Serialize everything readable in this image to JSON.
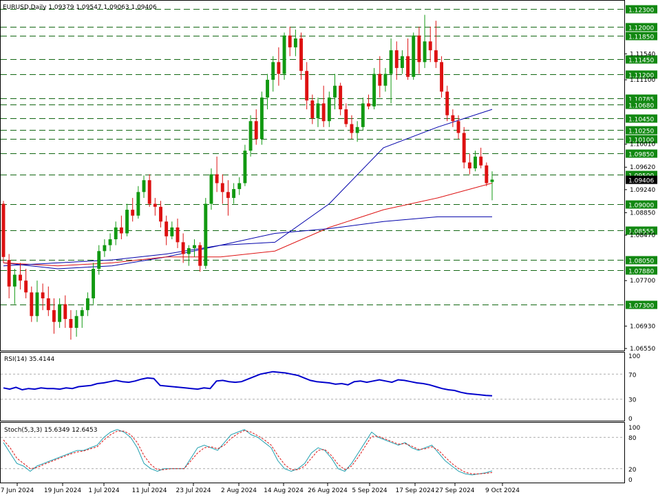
{
  "main": {
    "header": "EURUSD,Daily  1.09379 1.09547 1.09063 1.09406",
    "current_price": "1.09406",
    "price_ticks": [
      "1.11540",
      "1.11100",
      "1.10010",
      "1.09620",
      "1.09240",
      "1.08850",
      "1.08470",
      "1.07700",
      "1.06930",
      "1.06550"
    ],
    "levels": [
      "1.12300",
      "1.12000",
      "1.11850",
      "1.11450",
      "1.11200",
      "1.10785",
      "1.10680",
      "1.10450",
      "1.10250",
      "1.10100",
      "1.09850",
      "1.09500",
      "1.09000",
      "1.08555",
      "1.08050",
      "1.07880",
      "1.07300"
    ],
    "colors": {
      "up": "#119911",
      "down": "#dd1111",
      "level_bg": "#118811",
      "ma_red": "#dd1111",
      "ma_blue": "#0000aa",
      "current_bg": "#000000"
    }
  },
  "rsi": {
    "header": "RSI(14) 35.4144",
    "ticks": [
      "100",
      "70",
      "30",
      "0"
    ],
    "color": "#0000cc"
  },
  "stoch": {
    "header": "Stoch(5,3,3) 15.6349 12.6453",
    "ticks": [
      "100",
      "80",
      "20",
      "0"
    ],
    "main_color": "#20a0b0",
    "signal_color": "#dd1111"
  },
  "x_axis": {
    "labels": [
      "7 Jun 2024",
      "19 Jun 2024",
      "1 Jul 2024",
      "11 Jul 2024",
      "23 Jul 2024",
      "2 Aug 2024",
      "14 Aug 2024",
      "26 Aug 2024",
      "5 Sep 2024",
      "17 Sep 2024",
      "27 Sep 2024",
      "9 Oct 2024"
    ]
  },
  "chart_data": [
    {
      "type": "candlestick",
      "symbol": "EURUSD",
      "timeframe": "Daily",
      "ohlc": [
        [
          1.09,
          1.0905,
          1.08,
          1.081
        ],
        [
          1.0805,
          1.0815,
          1.074,
          1.076
        ],
        [
          1.076,
          1.079,
          1.073,
          1.078
        ],
        [
          1.078,
          1.08,
          1.0755,
          1.077
        ],
        [
          1.077,
          1.079,
          1.074,
          1.075
        ],
        [
          1.075,
          1.076,
          1.07,
          1.071
        ],
        [
          1.071,
          1.077,
          1.07,
          1.075
        ],
        [
          1.075,
          1.0765,
          1.072,
          1.074
        ],
        [
          1.074,
          1.076,
          1.071,
          1.072
        ],
        [
          1.072,
          1.074,
          1.068,
          1.07
        ],
        [
          1.07,
          1.074,
          1.069,
          1.073
        ],
        [
          1.073,
          1.0745,
          1.069,
          1.0705
        ],
        [
          1.0705,
          1.072,
          1.067,
          1.069
        ],
        [
          1.069,
          1.072,
          1.0675,
          1.071
        ],
        [
          1.071,
          1.0725,
          1.069,
          1.072
        ],
        [
          1.072,
          1.075,
          1.071,
          1.074
        ],
        [
          1.074,
          1.08,
          1.073,
          1.079
        ],
        [
          1.079,
          1.083,
          1.078,
          1.082
        ],
        [
          1.082,
          1.084,
          1.081,
          1.083
        ],
        [
          1.083,
          1.085,
          1.082,
          1.084
        ],
        [
          1.084,
          1.087,
          1.083,
          1.086
        ],
        [
          1.086,
          1.088,
          1.084,
          1.085
        ],
        [
          1.085,
          1.09,
          1.0845,
          1.089
        ],
        [
          1.089,
          1.091,
          1.087,
          1.088
        ],
        [
          1.088,
          1.093,
          1.0875,
          1.092
        ],
        [
          1.092,
          1.0948,
          1.091,
          1.094
        ],
        [
          1.094,
          1.095,
          1.0895,
          1.09
        ],
        [
          1.09,
          1.091,
          1.088,
          1.0895
        ],
        [
          1.0895,
          1.0905,
          1.086,
          1.087
        ],
        [
          1.087,
          1.088,
          1.083,
          1.0845
        ],
        [
          1.0845,
          1.087,
          1.084,
          1.086
        ],
        [
          1.086,
          1.0875,
          1.0825,
          1.0835
        ],
        [
          1.0835,
          1.085,
          1.08,
          1.0815
        ],
        [
          1.0815,
          1.083,
          1.0795,
          1.0825
        ],
        [
          1.0825,
          1.084,
          1.081,
          1.083
        ],
        [
          1.083,
          1.0835,
          1.0785,
          1.0795
        ],
        [
          1.0795,
          1.091,
          1.079,
          1.09
        ],
        [
          1.09,
          1.096,
          1.089,
          1.095
        ],
        [
          1.095,
          1.098,
          1.092,
          1.0935
        ],
        [
          1.0935,
          1.095,
          1.09,
          1.092
        ],
        [
          1.092,
          1.094,
          1.088,
          1.091
        ],
        [
          1.091,
          1.0935,
          1.09,
          1.0925
        ],
        [
          1.0925,
          1.0945,
          1.0915,
          1.0935
        ],
        [
          1.0935,
          1.1,
          1.093,
          1.099
        ],
        [
          1.099,
          1.105,
          1.098,
          1.104
        ],
        [
          1.104,
          1.106,
          1.1,
          1.101
        ],
        [
          1.101,
          1.109,
          1.1,
          1.108
        ],
        [
          1.108,
          1.112,
          1.106,
          1.111
        ],
        [
          1.111,
          1.115,
          1.109,
          1.114
        ],
        [
          1.114,
          1.1165,
          1.11,
          1.112
        ],
        [
          1.112,
          1.119,
          1.111,
          1.1185
        ],
        [
          1.1185,
          1.12,
          1.115,
          1.1165
        ],
        [
          1.1165,
          1.1195,
          1.115,
          1.118
        ],
        [
          1.118,
          1.119,
          1.111,
          1.1125
        ],
        [
          1.1125,
          1.114,
          1.106,
          1.1075
        ],
        [
          1.1075,
          1.1085,
          1.1035,
          1.1045
        ],
        [
          1.1045,
          1.108,
          1.103,
          1.107
        ],
        [
          1.107,
          1.11,
          1.103,
          1.104
        ],
        [
          1.104,
          1.109,
          1.103,
          1.108
        ],
        [
          1.108,
          1.112,
          1.106,
          1.11
        ],
        [
          1.11,
          1.1105,
          1.105,
          1.106
        ],
        [
          1.106,
          1.107,
          1.103,
          1.1035
        ],
        [
          1.1035,
          1.105,
          1.101,
          1.102
        ],
        [
          1.102,
          1.104,
          1.1005,
          1.103
        ],
        [
          1.103,
          1.108,
          1.1025,
          1.107
        ],
        [
          1.107,
          1.1085,
          1.106,
          1.1065
        ],
        [
          1.1065,
          1.113,
          1.106,
          1.112
        ],
        [
          1.112,
          1.115,
          1.108,
          1.11
        ],
        [
          1.11,
          1.113,
          1.109,
          1.112
        ],
        [
          1.112,
          1.118,
          1.107,
          1.116
        ],
        [
          1.116,
          1.1175,
          1.111,
          1.113
        ],
        [
          1.113,
          1.116,
          1.112,
          1.115
        ],
        [
          1.115,
          1.118,
          1.111,
          1.1115
        ],
        [
          1.1115,
          1.119,
          1.111,
          1.1185
        ],
        [
          1.1185,
          1.12,
          1.112,
          1.114
        ],
        [
          1.114,
          1.122,
          1.113,
          1.1175
        ],
        [
          1.1175,
          1.12,
          1.114,
          1.116
        ],
        [
          1.116,
          1.121,
          1.113,
          1.114
        ],
        [
          1.114,
          1.115,
          1.108,
          1.109
        ],
        [
          1.109,
          1.11,
          1.104,
          1.105
        ],
        [
          1.105,
          1.106,
          1.103,
          1.104
        ],
        [
          1.104,
          1.105,
          1.101,
          1.102
        ],
        [
          1.102,
          1.103,
          1.096,
          1.097
        ],
        [
          1.097,
          1.0985,
          1.095,
          1.096
        ],
        [
          1.096,
          1.099,
          1.0955,
          1.098
        ],
        [
          1.098,
          1.0995,
          1.096,
          1.0965
        ],
        [
          1.0965,
          1.097,
          1.093,
          1.0935
        ],
        [
          1.0937,
          1.0955,
          1.0906,
          1.0941
        ]
      ],
      "moving_averages": [
        {
          "color": "#0000aa",
          "values": [
            1.08,
            1.079,
            1.0795,
            1.081,
            1.083,
            1.0835,
            1.09,
            1.0995,
            1.103,
            1.106
          ]
        },
        {
          "color": "#dd1111",
          "values": [
            1.08,
            1.0795,
            1.08,
            1.081,
            1.081,
            1.082,
            1.086,
            1.089,
            1.091,
            1.0935
          ]
        },
        {
          "color": "#0000aa",
          "values": [
            1.0795,
            1.08,
            1.0805,
            1.0815,
            1.083,
            1.085,
            1.0858,
            1.087,
            1.0878,
            1.0878
          ]
        }
      ],
      "levels": [
        1.123,
        1.12,
        1.1185,
        1.1145,
        1.112,
        1.10785,
        1.1068,
        1.1045,
        1.1025,
        1.101,
        1.0985,
        1.095,
        1.09,
        1.08555,
        1.0805,
        1.0788,
        1.073
      ]
    },
    {
      "type": "line",
      "name": "RSI(14)",
      "ylim": [
        0,
        100
      ],
      "values": [
        48,
        46,
        49,
        45,
        47,
        46,
        48,
        47,
        47,
        46,
        48,
        47,
        50,
        51,
        52,
        55,
        56,
        58,
        60,
        58,
        57,
        59,
        62,
        64,
        63,
        52,
        51,
        50,
        49,
        48,
        47,
        46,
        48,
        47,
        59,
        60,
        58,
        57,
        58,
        62,
        66,
        70,
        72,
        74,
        73,
        72,
        70,
        68,
        64,
        60,
        58,
        57,
        56,
        54,
        55,
        53,
        58,
        59,
        57,
        59,
        61,
        59,
        57,
        61,
        60,
        58,
        56,
        55,
        53,
        50,
        47,
        45,
        44,
        41,
        39,
        38,
        37,
        36,
        35.4
      ]
    },
    {
      "type": "line",
      "name": "Stoch(5,3,3)",
      "ylim": [
        0,
        100
      ],
      "series": [
        {
          "values": [
            70,
            50,
            30,
            25,
            15,
            25,
            30,
            35,
            40,
            45,
            50,
            55,
            55,
            60,
            65,
            80,
            90,
            95,
            90,
            80,
            60,
            30,
            20,
            15,
            20,
            20,
            20,
            20,
            40,
            60,
            65,
            60,
            55,
            70,
            85,
            90,
            95,
            85,
            80,
            70,
            60,
            35,
            20,
            15,
            20,
            30,
            50,
            60,
            55,
            40,
            20,
            15,
            30,
            50,
            70,
            90,
            80,
            75,
            70,
            65,
            70,
            60,
            55,
            60,
            65,
            50,
            35,
            25,
            15,
            10,
            8,
            10,
            12,
            15.6
          ]
        },
        {
          "values": [
            75,
            60,
            40,
            30,
            20,
            22,
            28,
            33,
            38,
            43,
            48,
            52,
            54,
            58,
            62,
            75,
            85,
            92,
            92,
            85,
            70,
            45,
            28,
            18,
            18,
            20,
            20,
            20,
            35,
            50,
            60,
            62,
            58,
            65,
            78,
            87,
            93,
            90,
            83,
            75,
            65,
            45,
            28,
            18,
            18,
            25,
            40,
            55,
            57,
            45,
            28,
            18,
            25,
            42,
            62,
            82,
            82,
            77,
            72,
            67,
            68,
            63,
            57,
            58,
            62,
            55,
            42,
            30,
            20,
            13,
            10,
            10,
            11,
            12.6
          ]
        }
      ]
    }
  ]
}
